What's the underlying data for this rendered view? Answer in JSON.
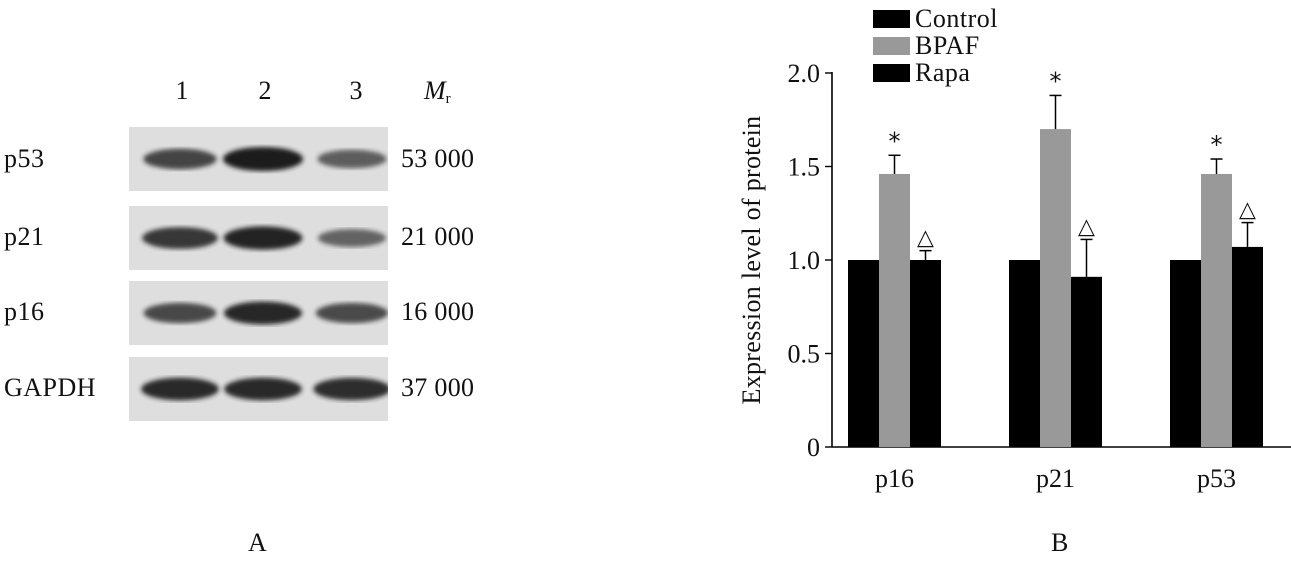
{
  "panel_a": {
    "label": "A",
    "lanes": [
      "1",
      "2",
      "3"
    ],
    "mr_label": "M",
    "mr_sub": "r",
    "blots": [
      {
        "protein": "p53",
        "mass": "53 000",
        "intensities": [
          0.72,
          1.0,
          0.55
        ]
      },
      {
        "protein": "p21",
        "mass": "21 000",
        "intensities": [
          0.82,
          0.95,
          0.5
        ]
      },
      {
        "protein": "p16",
        "mass": "16 000",
        "intensities": [
          0.7,
          0.92,
          0.68
        ]
      },
      {
        "protein": "GAPDH",
        "mass": "37 000",
        "intensities": [
          0.9,
          0.9,
          0.88
        ]
      }
    ],
    "colors": {
      "membrane": "#dedede",
      "band": "#1a1a1a"
    }
  },
  "panel_b": {
    "label": "B"
  },
  "chart_data": {
    "type": "bar",
    "title": "",
    "xlabel": "",
    "ylabel": "Expression level of protein",
    "ylim": [
      0,
      2.0
    ],
    "yticks": [
      "0",
      "0.5",
      "1.0",
      "1.5",
      "2.0"
    ],
    "categories": [
      "p16",
      "p21",
      "p53"
    ],
    "series": [
      {
        "name": "Control",
        "color": "#000000",
        "values": [
          1.0,
          1.0,
          1.0
        ],
        "errors": [
          0,
          0,
          0
        ],
        "marks": [
          "",
          "",
          ""
        ]
      },
      {
        "name": "BPAF",
        "color": "#999999",
        "values": [
          1.46,
          1.7,
          1.46
        ],
        "errors": [
          0.1,
          0.18,
          0.08
        ],
        "marks": [
          "*",
          "*",
          "*"
        ]
      },
      {
        "name": "Rapa",
        "color": "#000000",
        "values": [
          1.0,
          0.91,
          1.07
        ],
        "errors": [
          0.05,
          0.2,
          0.13
        ],
        "marks": [
          "△",
          "△",
          "△"
        ]
      }
    ],
    "legend_position": "top-left",
    "grid": false
  }
}
